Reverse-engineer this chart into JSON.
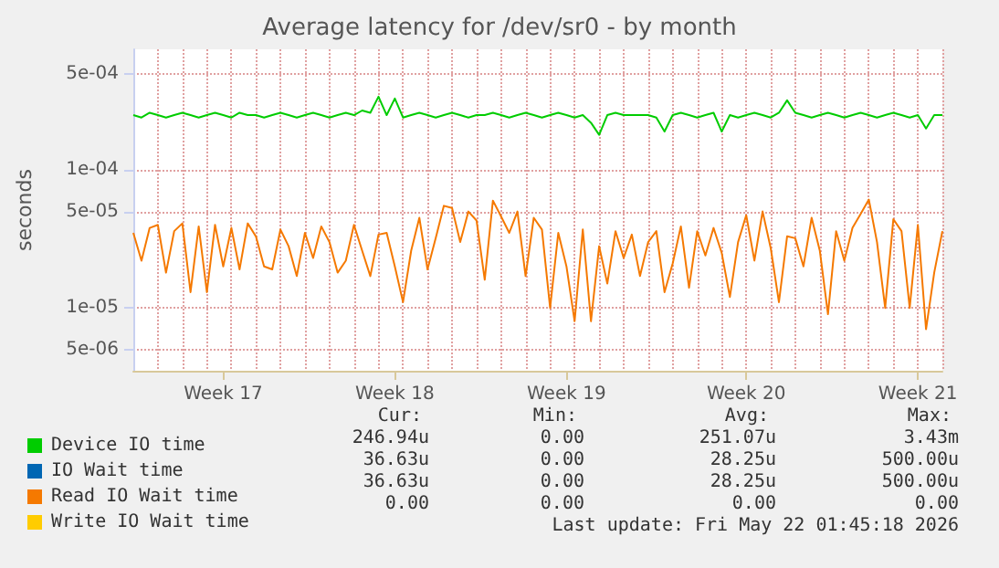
{
  "chart_data": {
    "type": "line",
    "title": "Average latency for /dev/sr0 - by month",
    "ylabel": "seconds",
    "log": "y",
    "grid": true,
    "legend": "bottom",
    "marker": "none",
    "line_style": "solid",
    "categories": [
      null,
      null,
      null,
      null,
      null,
      null,
      null,
      null,
      null,
      null,
      null,
      "Week 17",
      null,
      null,
      null,
      null,
      null,
      null,
      null,
      null,
      null,
      null,
      null,
      null,
      null,
      null,
      null,
      null,
      null,
      null,
      null,
      null,
      "Week 18",
      null,
      null,
      null,
      null,
      null,
      null,
      null,
      null,
      null,
      null,
      null,
      null,
      null,
      null,
      null,
      null,
      null,
      null,
      null,
      null,
      "Week 19",
      null,
      null,
      null,
      null,
      null,
      null,
      null,
      null,
      null,
      null,
      null,
      null,
      null,
      null,
      null,
      null,
      null,
      null,
      null,
      null,
      null,
      "Week 20",
      null,
      null,
      null,
      null,
      null,
      null,
      null,
      null,
      null,
      null,
      null,
      null,
      null,
      null,
      null,
      null,
      null,
      null,
      null,
      null,
      "Week 21",
      null,
      null,
      null
    ],
    "ylim": [
      3.5e-06,
      0.00075
    ],
    "yticks": [
      {
        "value": 5e-06,
        "label": "5e-06"
      },
      {
        "value": 1e-05,
        "label": "1e-05"
      },
      {
        "value": 5e-05,
        "label": "5e-05"
      },
      {
        "value": 0.0001,
        "label": "1e-04"
      },
      {
        "value": 0.0005,
        "label": "5e-04"
      }
    ],
    "series": [
      {
        "name": "Device IO time",
        "color": "#00cc00",
        "values": [
          0.00025,
          0.00024,
          0.00026,
          0.00025,
          0.00024,
          0.00025,
          0.00026,
          0.00025,
          0.00024,
          0.00025,
          0.00026,
          0.00025,
          0.00024,
          0.00026,
          0.00025,
          0.00025,
          0.00024,
          0.00025,
          0.00026,
          0.00025,
          0.00024,
          0.00025,
          0.00026,
          0.00025,
          0.00024,
          0.00025,
          0.00026,
          0.00025,
          0.00027,
          0.00026,
          0.00034,
          0.00025,
          0.00033,
          0.00024,
          0.00025,
          0.00026,
          0.00025,
          0.00024,
          0.00025,
          0.00026,
          0.00025,
          0.00024,
          0.00025,
          0.00025,
          0.00026,
          0.00025,
          0.00024,
          0.00025,
          0.00026,
          0.00025,
          0.00024,
          0.00025,
          0.00026,
          0.00025,
          0.00024,
          0.00025,
          0.00022,
          0.00018,
          0.00025,
          0.00026,
          0.00025,
          0.00025,
          0.00025,
          0.00025,
          0.00024,
          0.00019,
          0.00025,
          0.00026,
          0.00025,
          0.00024,
          0.00025,
          0.00026,
          0.00019,
          0.00025,
          0.00024,
          0.00025,
          0.00026,
          0.00025,
          0.00024,
          0.00026,
          0.00032,
          0.00026,
          0.00025,
          0.00024,
          0.00025,
          0.00026,
          0.00025,
          0.00024,
          0.00025,
          0.00026,
          0.00025,
          0.00024,
          0.00025,
          0.00026,
          0.00025,
          0.00024,
          0.00025,
          0.0002,
          0.00025,
          0.00025
        ]
      },
      {
        "name": "IO Wait time",
        "color": "#0066b3",
        "values": [
          null,
          null,
          null,
          null,
          null,
          null,
          null,
          null,
          null,
          null,
          null,
          null,
          null,
          null,
          null,
          null,
          null,
          null,
          null,
          null,
          null,
          null,
          null,
          null,
          null,
          null,
          null,
          null,
          null,
          null,
          null,
          null,
          null,
          null,
          null,
          null,
          null,
          null,
          null,
          null,
          null,
          null,
          null,
          null,
          null,
          null,
          null,
          null,
          null,
          null,
          null,
          null,
          null,
          null,
          null,
          null,
          null,
          null,
          null,
          null,
          null,
          null,
          null,
          null,
          null,
          null,
          null,
          null,
          null,
          null,
          null,
          null,
          null,
          null,
          null,
          null,
          null,
          null,
          null,
          null,
          null,
          null,
          null,
          null,
          null,
          null,
          null,
          null,
          null,
          null,
          null,
          null,
          null,
          null,
          null,
          null,
          null,
          null,
          null,
          null
        ]
      },
      {
        "name": "Read IO Wait time",
        "color": "#f57900",
        "values": [
          3.5e-05,
          2.2e-05,
          3.8e-05,
          4e-05,
          1.8e-05,
          3.6e-05,
          4.1e-05,
          1.3e-05,
          3.9e-05,
          1.3e-05,
          4e-05,
          2e-05,
          3.8e-05,
          1.9e-05,
          4.1e-05,
          3.3e-05,
          2e-05,
          1.9e-05,
          3.7e-05,
          2.8e-05,
          1.7e-05,
          3.5e-05,
          2.3e-05,
          3.9e-05,
          3e-05,
          1.8e-05,
          2.2e-05,
          4e-05,
          2.6e-05,
          1.7e-05,
          3.4e-05,
          3.5e-05,
          2e-05,
          1.1e-05,
          2.6e-05,
          4.5e-05,
          1.9e-05,
          3.2e-05,
          5.5e-05,
          5.3e-05,
          3e-05,
          5e-05,
          4.3e-05,
          1.6e-05,
          6e-05,
          4.6e-05,
          3.5e-05,
          5e-05,
          1.7e-05,
          4.5e-05,
          3.7e-05,
          1e-05,
          3.5e-05,
          2e-05,
          8e-06,
          3.7e-05,
          8e-06,
          2.8e-05,
          1.5e-05,
          3.6e-05,
          2.3e-05,
          3.4e-05,
          1.7e-05,
          3e-05,
          3.6e-05,
          1.3e-05,
          2.1e-05,
          3.9e-05,
          1.4e-05,
          3.6e-05,
          2.4e-05,
          3.8e-05,
          2.5e-05,
          1.2e-05,
          3e-05,
          4.7e-05,
          2.2e-05,
          5e-05,
          2.7e-05,
          1.1e-05,
          3.3e-05,
          3.2e-05,
          2e-05,
          4.5e-05,
          2.6e-05,
          9e-06,
          3.6e-05,
          2.2e-05,
          3.8e-05,
          4.8e-05,
          6.1e-05,
          3e-05,
          1e-05,
          4.4e-05,
          3.6e-05,
          1e-05,
          4e-05,
          7e-06,
          1.8e-05,
          3.6e-05
        ]
      },
      {
        "name": "Write IO Wait time",
        "color": "#ffcc00",
        "values": [
          null,
          null,
          null,
          null,
          null,
          null,
          null,
          null,
          null,
          null,
          null,
          null,
          null,
          null,
          null,
          null,
          null,
          null,
          null,
          null,
          null,
          null,
          null,
          null,
          null,
          null,
          null,
          null,
          null,
          null,
          null,
          null,
          null,
          null,
          null,
          null,
          null,
          null,
          null,
          null,
          null,
          null,
          null,
          null,
          null,
          null,
          null,
          null,
          null,
          null,
          null,
          null,
          null,
          null,
          null,
          null,
          null,
          null,
          null,
          null,
          null,
          null,
          null,
          null,
          null,
          null,
          null,
          null,
          null,
          null,
          null,
          null,
          null,
          null,
          null,
          null,
          null,
          null,
          null,
          null,
          null,
          null,
          null,
          null,
          null,
          null,
          null,
          null,
          null,
          null,
          null,
          null,
          null,
          null,
          null,
          null,
          null,
          null,
          null,
          null
        ]
      }
    ],
    "annotations": [
      "Cur:",
      "Min:",
      "Avg:",
      "Max:",
      "246.94u",
      "0.00",
      "251.07u",
      "3.43m",
      "36.63u",
      "0.00",
      "28.25u",
      "500.00u",
      "36.63u",
      "0.00",
      "28.25u",
      "500.00u",
      "0.00",
      "0.00",
      "0.00",
      "0.00",
      "Last update: Fri May 22 01:45:18 2026"
    ]
  }
}
